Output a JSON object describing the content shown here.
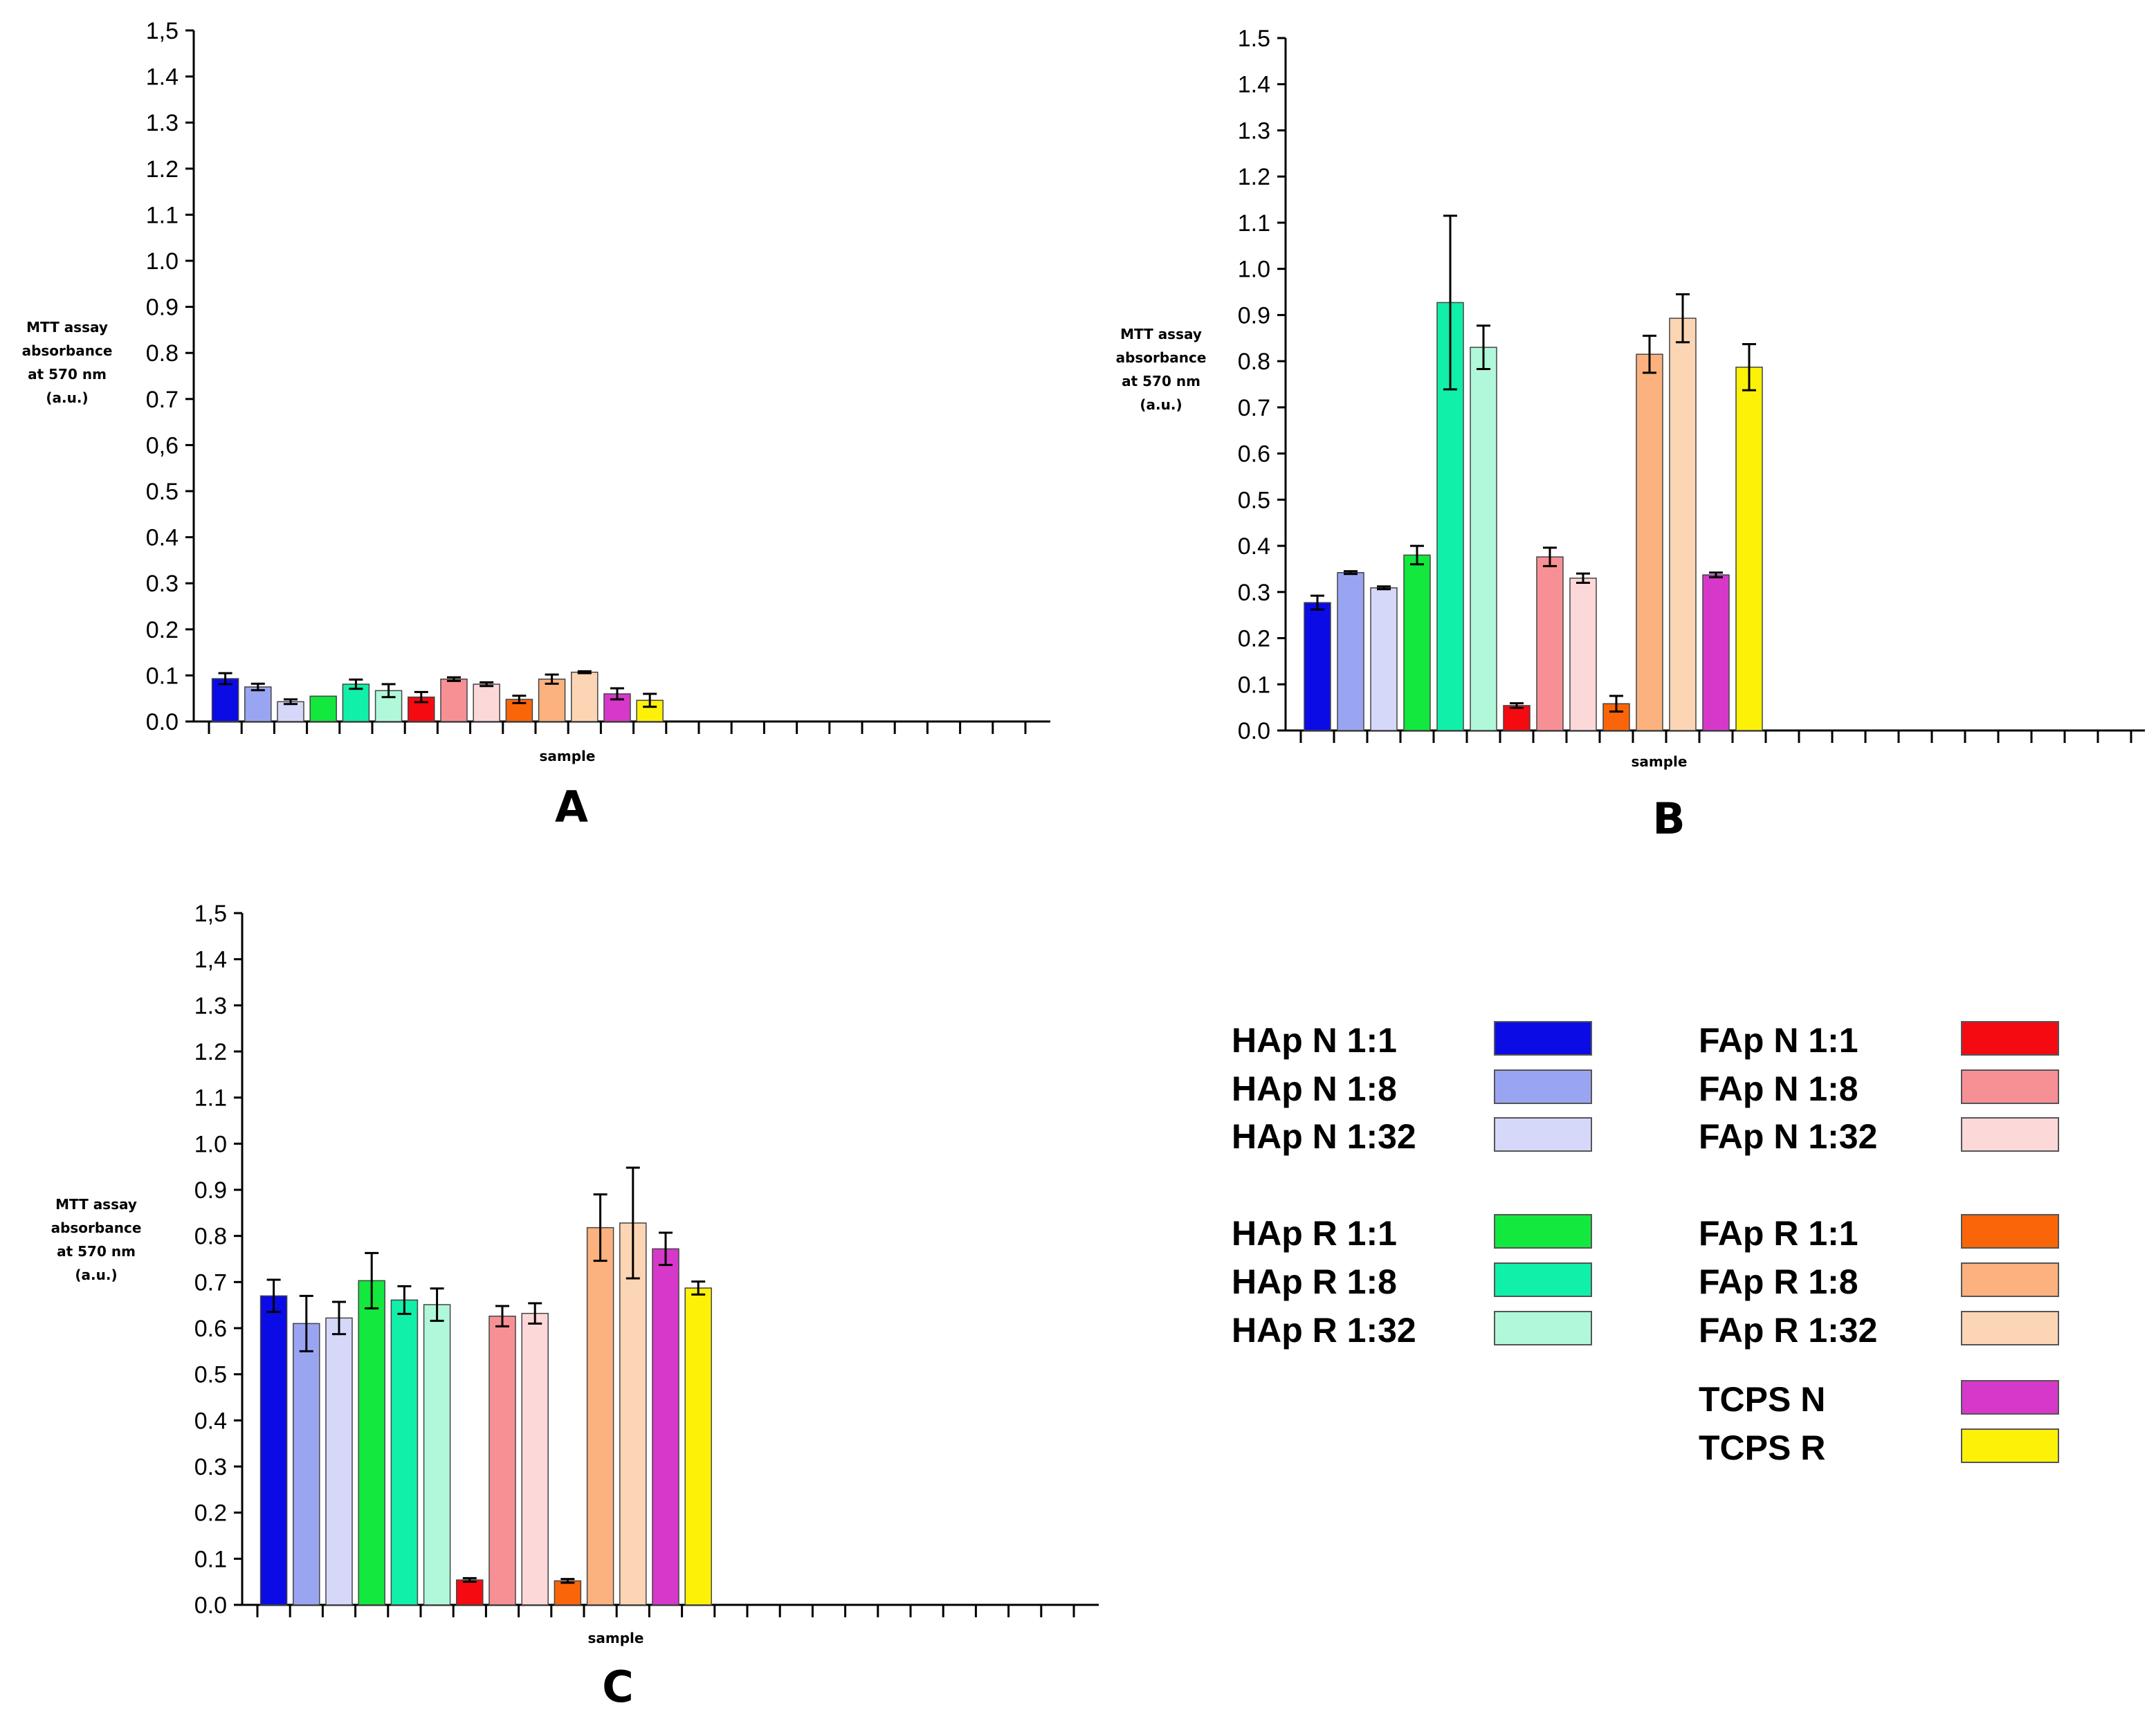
{
  "figure": {
    "note_letters": [
      "A",
      "B",
      "C"
    ]
  },
  "chart_data": [
    {
      "type": "bar",
      "panel": "A",
      "ylabel_lines": [
        "MTT assay",
        "absorbance",
        "at 570 nm",
        "(a.u.)"
      ],
      "xlabel": "sample",
      "ylim": [
        0,
        1.5
      ],
      "yticks": [
        "0.0",
        "0.1",
        "0.2",
        "0.3",
        "0.4",
        "0.5",
        "0,6",
        "0.7",
        "0.8",
        "0.9",
        "1.0",
        "1.1",
        "1.2",
        "1.3",
        "1.4",
        "1,5"
      ],
      "categories": [
        "HAp N 1:1",
        "HAp N 1:8",
        "HAp N 1:32",
        "HAp R 1:1",
        "HAp R 1:8",
        "HAp R 1:32",
        "FAp N 1:1",
        "FAp N 1:8",
        "FAp N 1:32",
        "FAp R 1:1",
        "FAp R 1:8",
        "FAp R 1:32",
        "TCPS N",
        "TCPS R"
      ],
      "values": [
        0.093,
        0.075,
        0.043,
        0.055,
        0.081,
        0.067,
        0.053,
        0.092,
        0.081,
        0.048,
        0.092,
        0.107,
        0.06,
        0.046
      ],
      "errors": [
        0.012,
        0.007,
        0.005,
        0.0,
        0.01,
        0.014,
        0.011,
        0.004,
        0.004,
        0.008,
        0.01,
        0.002,
        0.012,
        0.014
      ]
    },
    {
      "type": "bar",
      "panel": "B",
      "ylabel_lines": [
        "MTT assay",
        "absorbance",
        "at 570 nm",
        "(a.u.)"
      ],
      "xlabel": "sample",
      "ylim": [
        0,
        1.5
      ],
      "yticks": [
        "0.0",
        "0.1",
        "0.2",
        "0.3",
        "0.4",
        "0.5",
        "0.6",
        "0.7",
        "0.8",
        "0.9",
        "1.0",
        "1.1",
        "1.2",
        "1.3",
        "1.4",
        "1.5"
      ],
      "categories": [
        "HAp N 1:1",
        "HAp N 1:8",
        "HAp N 1:32",
        "HAp R 1:1",
        "HAp R 1:8",
        "HAp R 1:32",
        "FAp N 1:1",
        "FAp N 1:8",
        "FAp N 1:32",
        "FAp R 1:1",
        "FAp R 1:8",
        "FAp R 1:32",
        "TCPS N",
        "TCPS R"
      ],
      "values": [
        0.277,
        0.342,
        0.309,
        0.38,
        0.927,
        0.83,
        0.054,
        0.376,
        0.33,
        0.058,
        0.815,
        0.893,
        0.337,
        0.787
      ],
      "errors": [
        0.015,
        0.003,
        0.003,
        0.02,
        0.188,
        0.047,
        0.005,
        0.02,
        0.01,
        0.017,
        0.04,
        0.052,
        0.005,
        0.05
      ]
    },
    {
      "type": "bar",
      "panel": "C",
      "ylabel_lines": [
        "MTT assay",
        "absorbance",
        "at 570 nm",
        "(a.u.)"
      ],
      "xlabel": "sample",
      "ylim": [
        0,
        1.5
      ],
      "yticks": [
        "0.0",
        "0.1",
        "0.2",
        "0.3",
        "0.4",
        "0.5",
        "0.6",
        "0.7",
        "0.8",
        "0.9",
        "1.0",
        "1.1",
        "1.2",
        "1.3",
        "1,4",
        "1,5"
      ],
      "categories": [
        "HAp N 1:1",
        "HAp N 1:8",
        "HAp N 1:32",
        "HAp R 1:1",
        "HAp R 1:8",
        "HAp R 1:32",
        "FAp N 1:1",
        "FAp N 1:8",
        "FAp N 1:32",
        "FAp R 1:1",
        "FAp R 1:8",
        "FAp R 1:32",
        "TCPS N",
        "TCPS R"
      ],
      "values": [
        0.67,
        0.61,
        0.622,
        0.703,
        0.661,
        0.651,
        0.054,
        0.626,
        0.632,
        0.052,
        0.818,
        0.828,
        0.772,
        0.687
      ],
      "errors": [
        0.035,
        0.06,
        0.035,
        0.06,
        0.03,
        0.035,
        0.004,
        0.022,
        0.022,
        0.004,
        0.072,
        0.12,
        0.035,
        0.014
      ]
    }
  ],
  "legend": {
    "left": [
      {
        "label": "HAp N 1:1",
        "color": "#0b0be6"
      },
      {
        "label": "HAp N 1:8",
        "color": "#9aa5f2"
      },
      {
        "label": "HAp N 1:32",
        "color": "#d6d8fa"
      },
      {
        "label": "HAp R 1:1",
        "color": "#12e83d"
      },
      {
        "label": "HAp R 1:8",
        "color": "#10f0a8"
      },
      {
        "label": "HAp R 1:32",
        "color": "#b0f8d9"
      }
    ],
    "right": [
      {
        "label": "FAp N 1:1",
        "color": "#f50a12"
      },
      {
        "label": "FAp N 1:8",
        "color": "#f79095"
      },
      {
        "label": "FAp N 1:32",
        "color": "#fcd8d9"
      },
      {
        "label": "FAp R 1:1",
        "color": "#fb6509"
      },
      {
        "label": "FAp R 1:8",
        "color": "#fbb27e"
      },
      {
        "label": "FAp R 1:32",
        "color": "#fcd6b4"
      },
      {
        "label": "TCPS N",
        "color": "#d639c9"
      },
      {
        "label": "TCPS R",
        "color": "#fdf207"
      }
    ]
  }
}
